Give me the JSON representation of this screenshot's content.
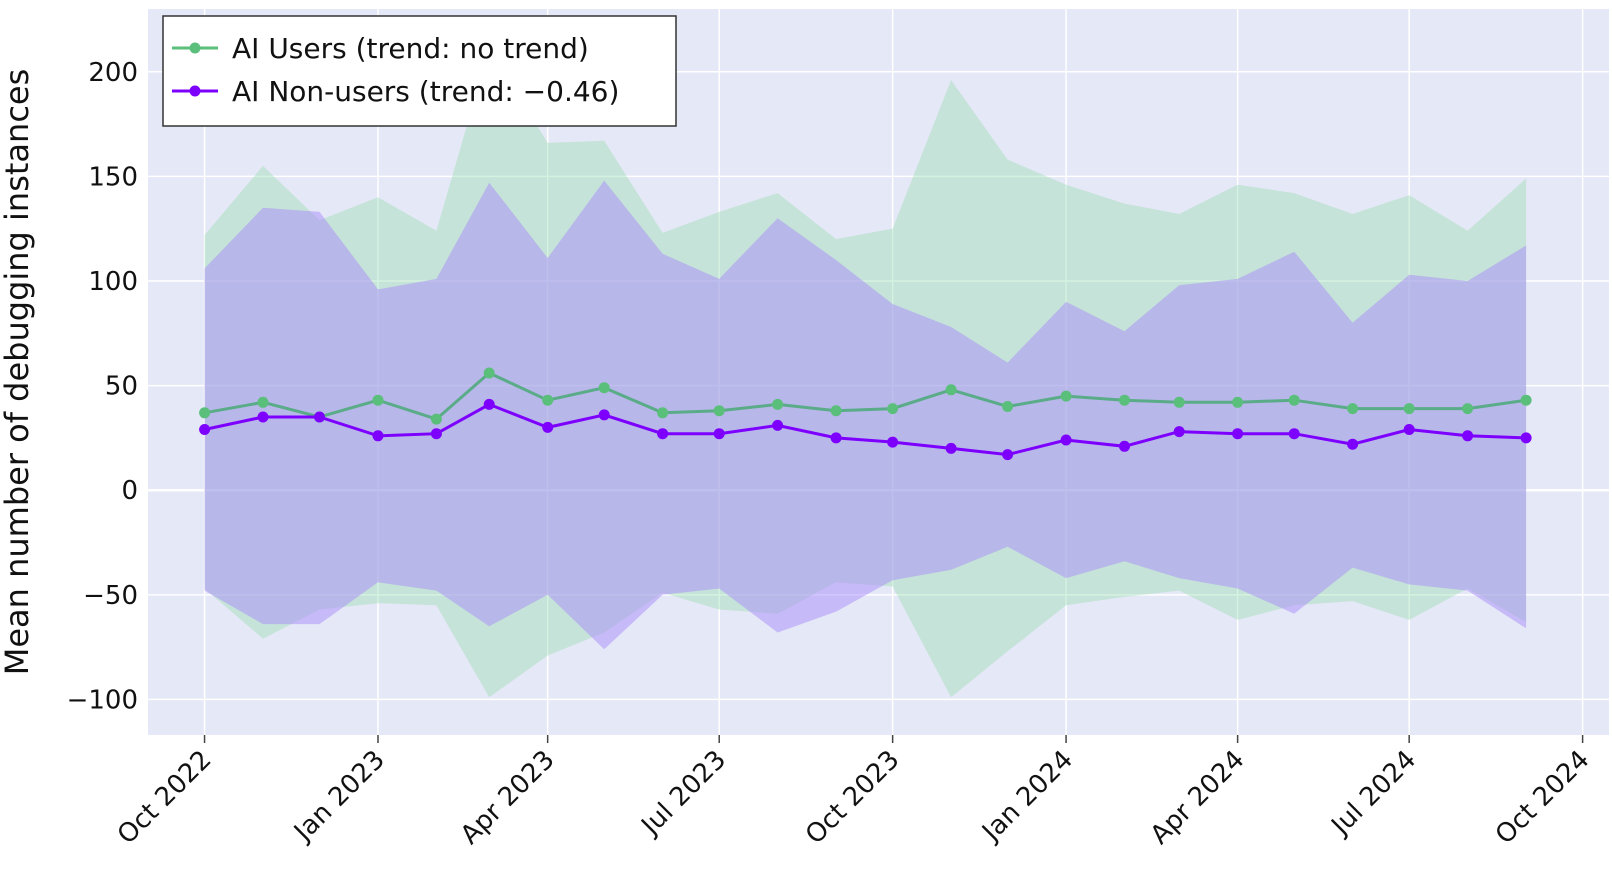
{
  "chart_data": {
    "type": "line",
    "title": "",
    "xlabel": "",
    "ylabel": "Mean number of debugging instances",
    "ylim": [
      -117,
      230
    ],
    "xlim": [
      "2022-09-01",
      "2024-10-15"
    ],
    "yticks": [
      -100,
      -50,
      0,
      50,
      100,
      150,
      200
    ],
    "ytick_labels": [
      "−100",
      "−50",
      "0",
      "50",
      "100",
      "150",
      "200"
    ],
    "xticks": [
      "2022-10-01",
      "2023-01-01",
      "2023-04-01",
      "2023-07-01",
      "2023-10-01",
      "2024-01-01",
      "2024-04-01",
      "2024-07-01",
      "2024-10-01"
    ],
    "xtick_labels": [
      "Oct 2022",
      "Jan 2023",
      "Apr 2023",
      "Jul 2023",
      "Oct 2023",
      "Jan 2024",
      "Apr 2024",
      "Jul 2024",
      "Oct 2024"
    ],
    "grid": true,
    "legend_position": "top-left",
    "x": [
      "2022-10-01",
      "2022-11-01",
      "2022-12-01",
      "2023-01-01",
      "2023-02-01",
      "2023-03-01",
      "2023-04-01",
      "2023-05-01",
      "2023-06-01",
      "2023-07-01",
      "2023-08-01",
      "2023-09-01",
      "2023-10-01",
      "2023-11-01",
      "2023-12-01",
      "2024-01-01",
      "2024-02-01",
      "2024-03-01",
      "2024-04-01",
      "2024-05-01",
      "2024-06-01",
      "2024-07-01",
      "2024-08-01",
      "2024-09-01"
    ],
    "series": [
      {
        "name": "AI Users (trend: no trend)",
        "color": "#5bbf7c",
        "line_color": "#5aab88",
        "band_color": "rgba(150, 220, 175, 0.40)",
        "values": [
          37,
          42,
          35,
          43,
          34,
          56,
          43,
          49,
          37,
          38,
          41,
          38,
          39,
          48,
          40,
          45,
          43,
          42,
          42,
          43,
          39,
          39,
          39,
          43
        ],
        "upper": [
          122,
          155,
          129,
          140,
          124,
          211,
          166,
          167,
          123,
          133,
          142,
          120,
          125,
          196,
          158,
          146,
          137,
          132,
          146,
          142,
          132,
          141,
          124,
          149
        ],
        "lower": [
          -47,
          -71,
          -57,
          -54,
          -55,
          -99,
          -79,
          -68,
          -49,
          -57,
          -59,
          -44,
          -46,
          -99,
          -77,
          -55,
          -51,
          -48,
          -62,
          -55,
          -53,
          -62,
          -47,
          -63
        ]
      },
      {
        "name": "AI Non-users (trend: −0.46)",
        "color": "#7d00ff",
        "line_color": "#7d00ff",
        "band_color": "rgba(170, 140, 250, 0.50)",
        "values": [
          29,
          35,
          35,
          26,
          27,
          41,
          30,
          36,
          27,
          27,
          31,
          25,
          23,
          20,
          17,
          24,
          21,
          28,
          27,
          27,
          22,
          29,
          26,
          25
        ],
        "upper": [
          106,
          135,
          133,
          96,
          101,
          147,
          111,
          148,
          113,
          101,
          130,
          110,
          89,
          78,
          61,
          90,
          76,
          98,
          101,
          114,
          80,
          103,
          100,
          117
        ],
        "lower": [
          -48,
          -64,
          -64,
          -44,
          -48,
          -65,
          -50,
          -76,
          -50,
          -47,
          -68,
          -58,
          -43,
          -38,
          -27,
          -42,
          -34,
          -42,
          -47,
          -59,
          -37,
          -45,
          -48,
          -66
        ]
      }
    ]
  }
}
